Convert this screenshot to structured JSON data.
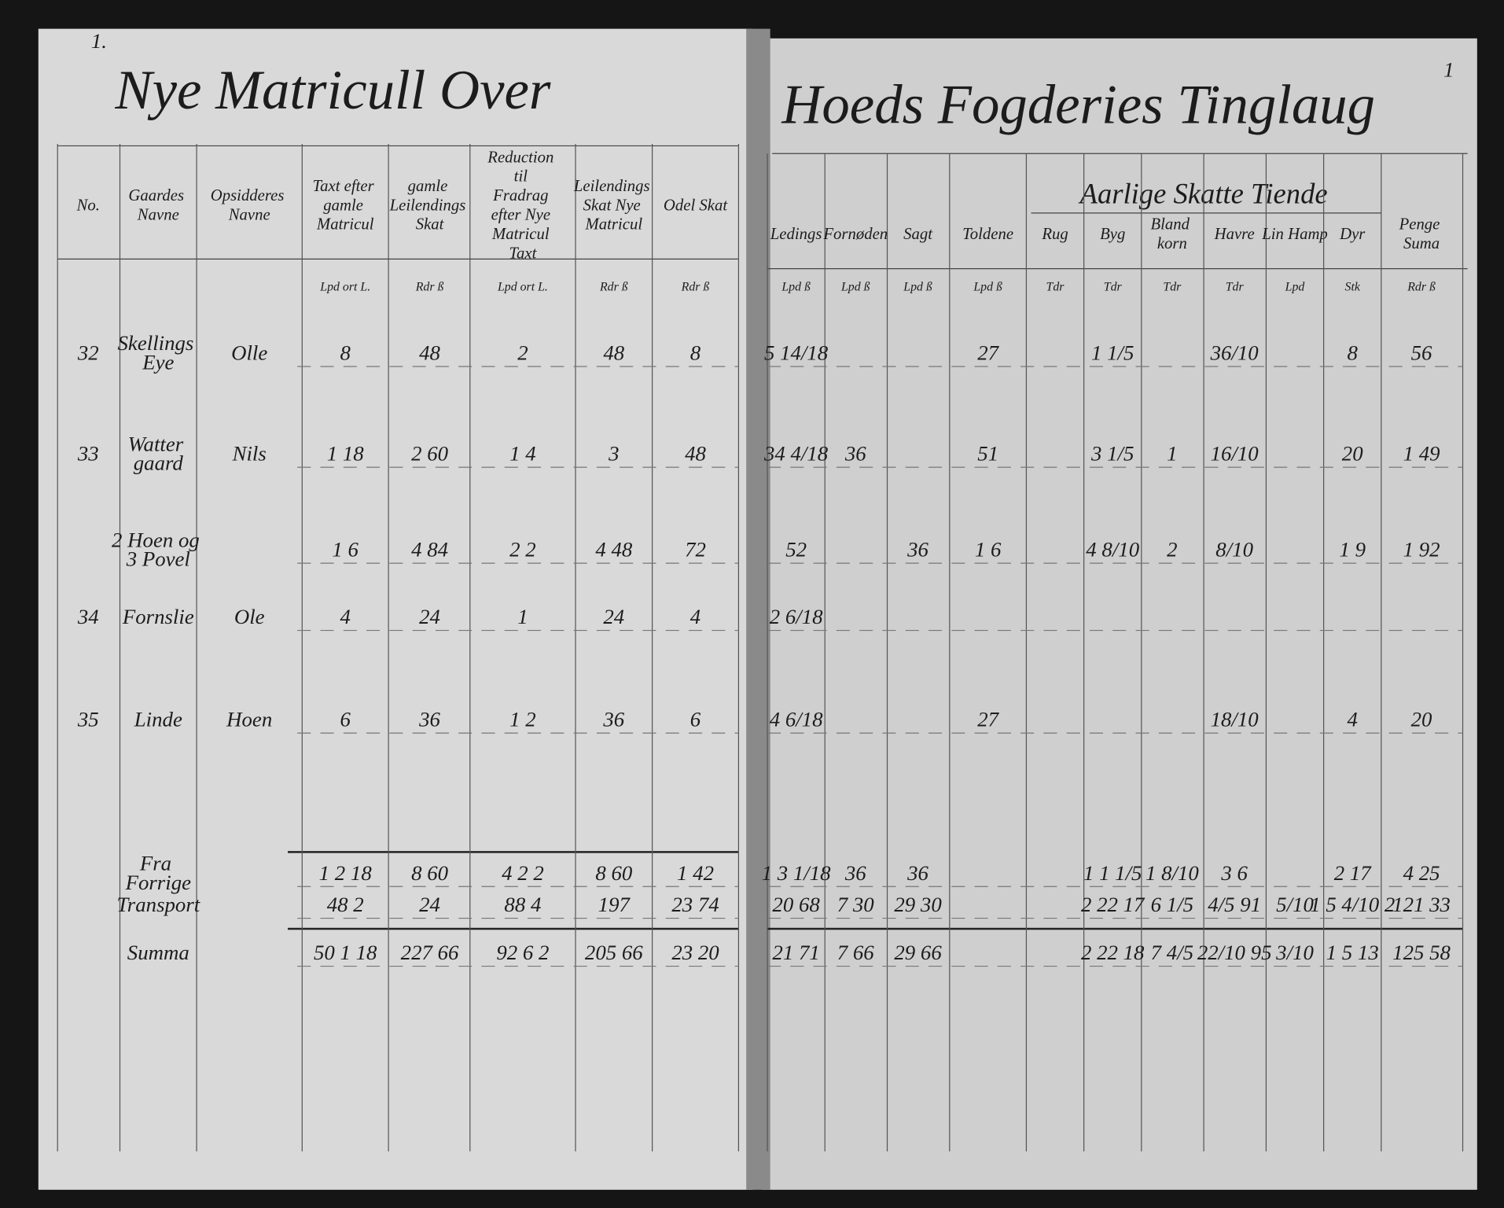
{
  "left_page": {
    "page_number": "1.",
    "title": "Nye Matricull Over",
    "header": {
      "no": "No.",
      "farm": "Gaardes Navne",
      "occupant": "Opsidderes Navne",
      "old_taxt": "Taxt efter gamle Matricul",
      "old_skat": "gamle Leilendings Skat",
      "reduction": "Reduction til Fradrag efter Nye Matricul Taxt",
      "new_skat": "Leilendings Skat Nye Matricul",
      "odel": "Odel Skat"
    },
    "units": {
      "old_taxt": "Lpd ort L.",
      "old_skat": "Rdr ß",
      "reduction": "Lpd ort L.",
      "new_skat": "Rdr ß",
      "odel": "Rdr ß"
    },
    "rows": [
      {
        "no": "32",
        "farm": "Skellings Eye",
        "occupant": "Olle",
        "old_taxt": "8",
        "old_skat": "48",
        "reduction": "2",
        "new_skat": "48",
        "odel": "8"
      },
      {
        "no": "33",
        "farm": "Watter gaard",
        "occupant": "Nils",
        "old_taxt": "1 18",
        "old_skat": "2 60",
        "reduction": "1 4",
        "new_skat": "3",
        "odel": "48"
      },
      {
        "farm": "2 Hoen og 3 Povel",
        "old_taxt": "1 6",
        "old_skat": "4 84",
        "reduction": "2 2",
        "new_skat": "4 48",
        "odel": "72"
      },
      {
        "no": "34",
        "farm": "Fornslie",
        "occupant": "Ole",
        "old_taxt": "4",
        "old_skat": "24",
        "reduction": "1",
        "new_skat": "24",
        "odel": "4"
      },
      {
        "no": "35",
        "farm": "Linde",
        "occupant": "Hoen",
        "old_taxt": "6",
        "old_skat": "36",
        "reduction": "1 2",
        "new_skat": "36",
        "odel": "6"
      }
    ],
    "totals": [
      {
        "farm": "Fra Forrige",
        "old_taxt": "1 2 18",
        "old_skat": "8 60",
        "reduction": "4 2 2",
        "new_skat": "8 60",
        "odel": "1 42"
      },
      {
        "farm": "Transport",
        "old_taxt": "48 2",
        "old_skat": "24",
        "reduction": "88 4",
        "new_skat": "197",
        "odel": "23 74"
      },
      {
        "farm": "Summa",
        "old_taxt": "50 1 18",
        "old_skat": "227 66",
        "reduction": "92 6 2",
        "new_skat": "205 66",
        "odel": "23 20"
      }
    ]
  },
  "right_page": {
    "page_number": "1",
    "title": "Hoeds Fogderies Tinglaug",
    "group_header": "Aarlige Skatte Tiende",
    "header": {
      "leding": "Ledings",
      "fornoden": "Fornøden",
      "sagt": "Sagt",
      "toldene": "Toldene",
      "rug": "Rug",
      "byg": "Byg",
      "blandkorn": "Bland korn",
      "havre": "Havre",
      "lin": "Lin Hamp",
      "dyr": "Dyr",
      "penge": "Penge Suma"
    },
    "units": {
      "leding": "Lpd ß",
      "fornoden": "Lpd ß",
      "sagt": "Lpd ß",
      "toldene": "Lpd ß",
      "rug": "Tdr",
      "byg": "Tdr",
      "blandkorn": "Tdr",
      "havre": "Tdr",
      "lin": "Lpd",
      "dyr": "Stk",
      "penge": "Rdr ß"
    },
    "rows": [
      {
        "leding": "5 14/18",
        "toldene": "27",
        "byg": "1 1/5",
        "havre": "36/10",
        "dyr": "8",
        "penge": "56"
      },
      {
        "leding": "34 4/18",
        "fornoden": "36",
        "toldene": "51",
        "byg": "3 1/5",
        "blandkorn": "1",
        "havre": "16/10",
        "dyr": "20",
        "penge": "1 49"
      },
      {
        "leding": "52",
        "sagt": "36",
        "toldene": "1 6",
        "byg": "4 8/10",
        "blandkorn": "2",
        "havre": "8/10",
        "dyr": "1 9",
        "penge": "1 92"
      },
      {
        "leding": "2 6/18"
      },
      {
        "leding": "4 6/18",
        "toldene": "27",
        "havre": "18/10",
        "dyr": "4",
        "penge": "20"
      }
    ],
    "totals": [
      {
        "leding": "1 3 1/18",
        "fornoden": "36",
        "sagt": "36",
        "byg": "1 1 1/5",
        "blandkorn": "1 8/10",
        "havre": "3 6",
        "dyr": "2 17",
        "penge": "4 25"
      },
      {
        "leding": "20 68",
        "fornoden": "7 30",
        "sagt": "29 30",
        "byg": "2 22 17",
        "blandkorn": "6 1/5",
        "havre": "4/5 91",
        "lin": "5/10",
        "dyr": "1 5 4/10 2",
        "penge": "121 33"
      },
      {
        "leding": "21 71",
        "fornoden": "7 66",
        "sagt": "29 66",
        "byg": "2 22 18",
        "blandkorn": "7 4/5",
        "havre": "22/10 95",
        "lin": "3/10",
        "dyr": "1 5 13",
        "penge": "125 58"
      }
    ]
  }
}
